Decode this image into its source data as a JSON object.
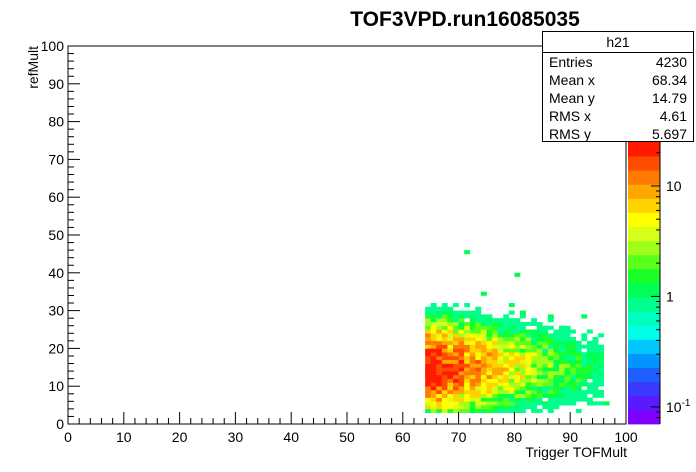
{
  "chart_data": {
    "type": "heatmap",
    "title": "TOF3VPD.run16085035",
    "xlabel": "Trigger TOFMult",
    "ylabel": "refMult",
    "xlim": [
      0,
      100
    ],
    "ylim": [
      0,
      100
    ],
    "x_ticks": [
      "0",
      "10",
      "20",
      "30",
      "40",
      "50",
      "60",
      "70",
      "80",
      "90",
      "100"
    ],
    "y_ticks": [
      "0",
      "10",
      "20",
      "30",
      "40",
      "50",
      "60",
      "70",
      "80",
      "90",
      "100"
    ],
    "z_scale": "log",
    "z_range": [
      0.07,
      25
    ],
    "z_ticks": [
      {
        "label": "10",
        "value": 10
      },
      {
        "label": "1",
        "value": 1
      },
      {
        "label": "10",
        "sup": "-1",
        "value": 0.1
      }
    ],
    "palette": [
      "#7f00ff",
      "#5a1aff",
      "#3a3aff",
      "#1f5fff",
      "#0095ff",
      "#00c8ff",
      "#00ffe6",
      "#00ffbf",
      "#00ff8c",
      "#00ff55",
      "#1aff2a",
      "#5aff1a",
      "#a0ff1a",
      "#d8ff1a",
      "#ffff00",
      "#ffd200",
      "#ffa600",
      "#ff7a00",
      "#ff4d00",
      "#ff1a00"
    ],
    "grid": false,
    "stats": {
      "name": "h21",
      "entries_label": "Entries",
      "entries": "4230",
      "mean_x_label": "Mean x",
      "mean_x": "68.34",
      "mean_y_label": "Mean y",
      "mean_y": "14.79",
      "rms_x_label": "RMS x",
      "rms_x": "4.61",
      "rms_y_label": "RMS y",
      "rms_y": "5.697"
    },
    "distribution": {
      "x_onset": 64,
      "x_peak": 65.5,
      "x_tail_scale": 9,
      "x_max": 96,
      "y_peak": 15,
      "y_sigma": 5.7,
      "y_min": 3,
      "y_max": 46,
      "peak_count": 24,
      "outliers": [
        [
          71,
          45
        ],
        [
          80,
          39
        ],
        [
          74,
          34
        ],
        [
          79,
          31
        ],
        [
          81,
          29
        ],
        [
          92,
          28
        ],
        [
          86,
          28
        ],
        [
          90,
          21
        ],
        [
          93,
          18
        ],
        [
          95,
          18
        ],
        [
          85,
          14
        ],
        [
          89,
          13
        ],
        [
          87,
          11
        ],
        [
          96,
          5
        ]
      ]
    }
  }
}
